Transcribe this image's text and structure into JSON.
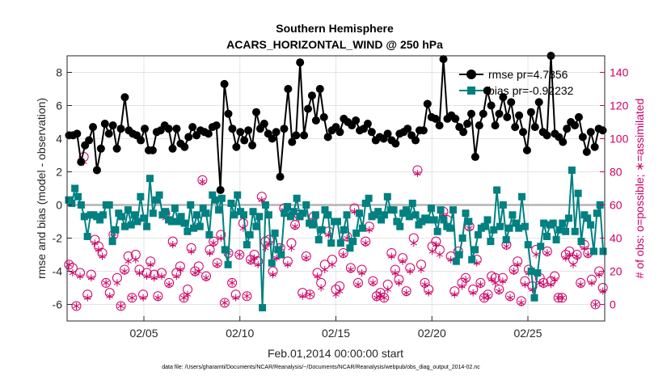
{
  "chart_data": {
    "type": "line",
    "title": [
      "Southern Hemisphere",
      "ACARS_HORIZONTAL_WIND @ 250 hPa"
    ],
    "xlabel": "Feb.01,2014 00:00:00 start",
    "ylabel": "rmse and bias (model - observation)",
    "ylabel_right": "# of obs: o=possible; ∗=assimilated",
    "footer": "data file: /Users/gharamti/Documents/NCAR/Reanalysis/~/Documents/NCAR/Reanalysis/webpub/obs_diag_output_2014-02.nc",
    "xlim": [
      1,
      29
    ],
    "ylim": [
      -7,
      9
    ],
    "ylim_right": [
      -10,
      150
    ],
    "x_ticks": [
      5,
      10,
      15,
      20,
      25
    ],
    "x_tick_labels": [
      "02/05",
      "02/10",
      "02/15",
      "02/20",
      "02/25"
    ],
    "y_ticks": [
      -6,
      -4,
      -2,
      0,
      2,
      4,
      6,
      8
    ],
    "y_tick_labels": [
      "-6",
      "-4",
      "-2",
      "0",
      "2",
      "4",
      "6",
      "8"
    ],
    "y_ticks_right": [
      0,
      20,
      40,
      60,
      80,
      100,
      120,
      140
    ],
    "y_tick_labels_right": [
      "0",
      "20",
      "40",
      "60",
      "80",
      "100",
      "120",
      "140"
    ],
    "grid": true,
    "legend_position": "top-right",
    "series": [
      {
        "name": "rmse",
        "legend_label": "rmse pr=4.7356",
        "color": "#000000",
        "marker": "circle",
        "values": [
          4.2,
          4.2,
          4.3,
          2.6,
          3.6,
          3.9,
          4.7,
          2.1,
          3.4,
          4.9,
          4.3,
          4.8,
          3.4,
          4.6,
          6.5,
          4.5,
          4.3,
          4.2,
          3.9,
          4.6,
          3.3,
          3.3,
          4.4,
          4.5,
          4.8,
          4.6,
          3.4,
          4.6,
          3.7,
          3.5,
          4.1,
          4.7,
          4.2,
          4.5,
          4.4,
          4.3,
          4.7,
          4.8,
          0.9,
          7.3,
          5.5,
          4.6,
          3.5,
          4.4,
          3.9,
          4.5,
          3.6,
          5.6,
          4.6,
          4.9,
          4.3,
          4.0,
          4.4,
          1.7,
          4.6,
          7.0,
          3.8,
          4.2,
          8.6,
          4.2,
          5.8,
          6.6,
          5.1,
          7.0,
          5.3,
          4.1,
          4.5,
          4.7,
          4.4,
          5.2,
          5.0,
          4.8,
          5.1,
          4.5,
          4.6,
          4.9,
          4.4,
          3.9,
          4.1,
          4.0,
          4.3,
          3.9,
          3.7,
          4.3,
          4.4,
          4.6,
          4.2,
          3.9,
          4.5,
          4.5,
          6.1,
          5.3,
          5.2,
          4.8,
          8.8,
          5.2,
          5.4,
          5.2,
          4.7,
          4.4,
          4.9,
          5.5,
          2.9,
          4.8,
          5.5,
          6.9,
          6.0,
          4.8,
          5.5,
          6.5,
          5.3,
          6.2,
          4.7,
          5.4,
          4.4,
          3.3,
          5.6,
          4.7,
          6.2,
          4.4,
          4.2,
          9.0,
          4.3,
          4.1,
          3.8,
          4.6,
          5.0,
          4.8,
          5.3,
          4.1,
          3.2,
          4.4,
          3.5,
          4.6,
          4.5
        ]
      },
      {
        "name": "bias",
        "legend_label": "bias pr=-0.92232",
        "color": "#008080",
        "marker": "square",
        "values": [
          0.3,
          0.1,
          1.0,
          0.5,
          0.0,
          -0.7,
          -1.9,
          -0.6,
          -0.6,
          -0.7,
          -0.9,
          -0.6,
          0.0,
          0.0,
          -2.2,
          -1.5,
          -0.5,
          -0.7,
          -1.3,
          -0.3,
          -1.2,
          -0.6,
          -1.0,
          0.5,
          -0.8,
          -1.3,
          1.6,
          -0.5,
          0.3,
          0.6,
          -0.6,
          -0.4,
          -0.9,
          -1.0,
          -0.2,
          -1.0,
          -0.7,
          -1.1,
          -1.6,
          0.0,
          -1.4,
          -0.6,
          -1.3,
          -0.2,
          -0.5,
          -1.8,
          0.6,
          0.3,
          -0.3,
          0.4,
          -2.7,
          -3.6,
          0.1,
          -0.6,
          0.6,
          -0.4,
          -0.6,
          -2.4,
          -1.8,
          -0.4,
          -1.3,
          -0.7,
          -6.2,
          0.0,
          -0.6,
          -3.5,
          -1.7,
          -2.7,
          -3.0,
          -0.5,
          -0.1,
          -0.7,
          -0.4,
          0.4,
          -0.7,
          -0.5,
          0.0,
          -1.1,
          -1.2,
          -0.6,
          -2.1,
          -1.5,
          -0.3,
          -0.6,
          -2.3,
          -1.0,
          -1.0,
          -2.3,
          -1.5,
          -0.6,
          -2.6,
          -2.2,
          -1.7,
          -0.5,
          -1.4,
          0.1,
          0.4,
          -0.7,
          -0.6,
          -0.4,
          -0.9,
          -0.6,
          0.5,
          -0.3,
          -0.3,
          -1.0,
          -1.3,
          -0.5,
          -0.3,
          -0.7,
          0.1,
          -0.6,
          -1.2,
          -1.0,
          -0.8,
          -0.9,
          -0.2,
          -0.9,
          -1.6,
          -0.3,
          -0.9,
          -1.3,
          -1.4,
          -0.3,
          -3.4,
          -3.0,
          -2.0,
          -0.5,
          -1.0,
          -3.3,
          -2.7,
          -1.8,
          -1.4,
          -1.3,
          -0.9,
          -2.2,
          -1.5,
          0.9,
          -1.3,
          0.0,
          -2.1,
          -1.4,
          -0.6,
          -1.1,
          -1.4,
          0.5,
          -1.3,
          -2.4,
          -4.0,
          -5.6,
          -4.1,
          -2.5,
          -1.1,
          -1.9,
          -1.2,
          -1.1,
          -2.1,
          -1.5,
          -1.1,
          -1.6,
          -0.8,
          2.1,
          -1.6,
          0.7,
          -2.2,
          -0.6,
          -0.8,
          -1.2,
          -2.8,
          -0.5,
          0.0,
          -2.8
        ]
      }
    ],
    "obs_possible_circles": [
      24.0,
      22.0,
      -1.0,
      19.0,
      89.0,
      6.0,
      18.0,
      39.0,
      35.0,
      31.0,
      13.0,
      7.0,
      42.0,
      16.0,
      -1.0,
      21.0,
      29.0,
      4.0,
      30.0,
      21.0,
      6.0,
      19.0,
      26.0,
      18.0,
      5.0,
      19.0,
      55.0,
      13.0,
      38.0,
      19.0,
      23.0,
      4.0,
      9.0,
      34.0,
      20.0,
      23.0,
      75.0,
      17.0,
      33.0,
      38.0,
      25.0,
      42.0,
      1.0,
      31.0,
      13.0,
      6.0,
      30.0,
      49.0,
      5.0,
      27.0,
      30.0,
      26.0,
      65.0,
      38.0,
      39.0,
      20.0,
      30.0,
      34.0,
      58.0,
      26.0,
      37.0,
      48.0,
      54.0,
      7.0,
      29.0,
      6.0,
      53.0,
      19.0,
      13.0,
      24.0,
      44.0,
      27.0,
      9.0,
      11.0,
      31.0,
      41.0,
      22.0,
      58.0,
      13.0,
      21.0,
      38.0,
      47.0,
      14.0,
      5.0,
      7.0,
      4.0,
      12.0,
      31.0,
      21.0,
      15.0,
      28.0,
      8.0,
      22.0,
      40.0,
      81.0,
      24.0,
      13.0,
      9.0,
      35.0,
      38.0,
      33.0,
      56.0,
      51.0,
      29.0,
      8.0,
      32.0,
      13.0,
      16.0,
      47.0,
      9.0,
      27.0,
      13.0,
      4.0,
      6.0,
      17.0,
      16.0,
      9.0,
      16.0,
      36.0,
      5.0,
      21.0,
      26.0,
      2.0,
      14.0,
      21.0,
      11.0,
      33.0,
      16.0,
      13.0,
      32.0,
      14.0,
      17.0,
      4.0,
      4.0,
      30.0,
      32.0,
      27.0,
      30.0,
      13.0,
      36.0,
      31.0,
      15.0,
      0.0,
      20.0,
      10.0
    ],
    "obs_assimilated_stars": [
      24.0,
      19.0,
      -1.0,
      17.0,
      86.0,
      4.0,
      16.0,
      37.0,
      33.0,
      29.0,
      13.0,
      5.0,
      41.0,
      13.0,
      -1.0,
      20.0,
      26.0,
      4.0,
      27.0,
      19.0,
      4.0,
      17.0,
      24.0,
      16.0,
      4.0,
      17.0,
      52.0,
      12.0,
      36.0,
      17.0,
      21.0,
      4.0,
      6.0,
      32.0,
      19.0,
      20.0,
      74.0,
      16.0,
      31.0,
      37.0,
      24.0,
      40.0,
      1.0,
      31.0,
      13.0,
      4.0,
      30.0,
      46.0,
      5.0,
      26.0,
      28.0,
      24.0,
      63.0,
      34.0,
      37.0,
      18.0,
      28.0,
      34.0,
      57.0,
      24.0,
      34.0,
      47.0,
      52.0,
      5.0,
      28.0,
      6.0,
      51.0,
      17.0,
      10.0,
      21.0,
      42.0,
      24.0,
      6.0,
      8.0,
      30.0,
      40.0,
      21.0,
      56.0,
      12.0,
      19.0,
      37.0,
      45.0,
      13.0,
      4.0,
      6.0,
      4.0,
      9.0,
      29.0,
      19.0,
      13.0,
      26.0,
      7.0,
      20.0,
      37.0,
      79.0,
      21.0,
      12.0,
      7.0,
      32.0,
      36.0,
      30.0,
      54.0,
      48.0,
      27.0,
      6.0,
      29.0,
      11.0,
      15.0,
      46.0,
      7.0,
      25.0,
      12.0,
      4.0,
      5.0,
      15.0,
      13.0,
      8.0,
      14.0,
      35.0,
      4.0,
      20.0,
      24.0,
      1.0,
      12.0,
      19.0,
      9.0,
      30.0,
      13.0,
      12.0,
      31.0,
      12.0,
      15.0,
      4.0,
      4.0,
      28.0,
      30.0,
      24.0,
      29.0,
      12.0,
      34.0,
      30.0,
      13.0,
      0.0,
      18.0,
      8.0
    ]
  },
  "colors": {
    "rmse": "#000000",
    "bias": "#008080",
    "obs": "#cc0066",
    "zero_line": "#b3b3b3"
  }
}
